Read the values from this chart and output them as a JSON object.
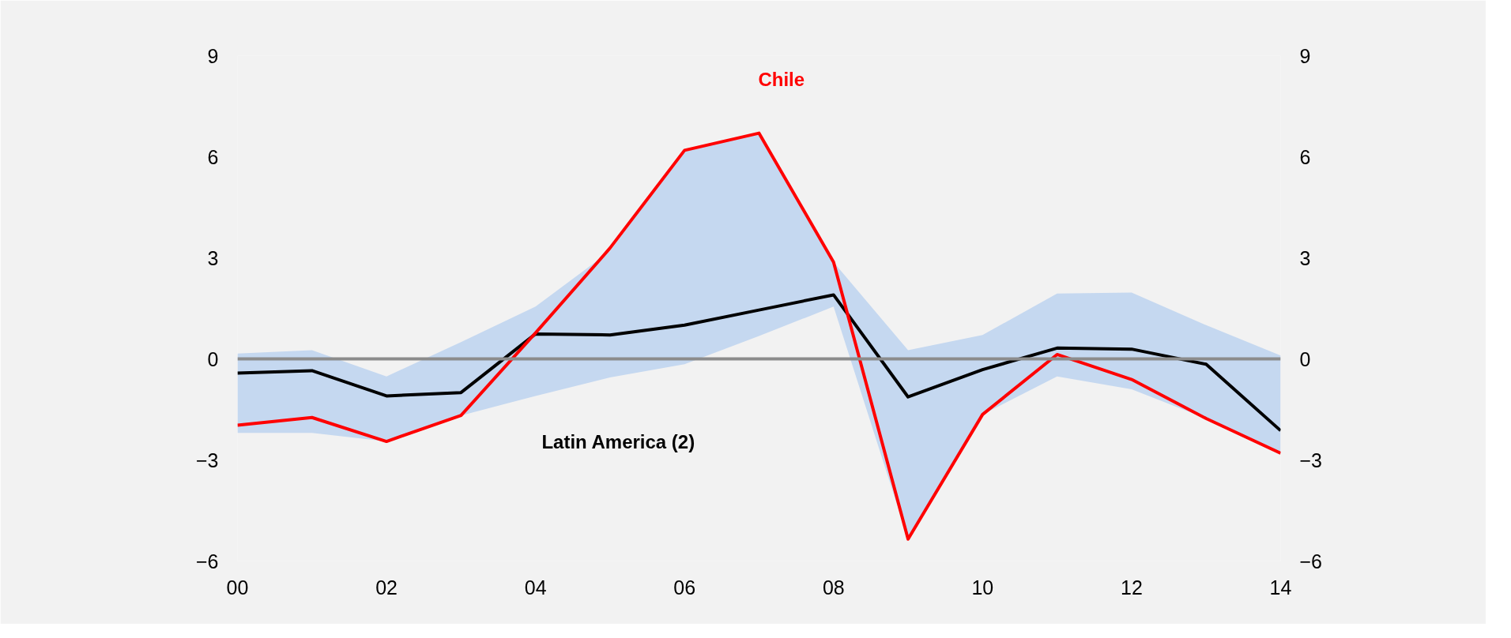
{
  "chart_data": {
    "type": "line",
    "x": [
      2000,
      2001,
      2002,
      2003,
      2004,
      2005,
      2006,
      2007,
      2008,
      2009,
      2010,
      2011,
      2012,
      2013,
      2014
    ],
    "series": [
      {
        "name": "Latin America  (2)",
        "color": "#000000",
        "values": [
          -0.42,
          -0.35,
          -1.1,
          -1.0,
          0.74,
          0.71,
          1.0,
          1.45,
          1.9,
          -1.13,
          -0.32,
          0.32,
          0.29,
          -0.16,
          -2.13
        ],
        "lower": [
          -2.2,
          -2.2,
          -2.45,
          -1.68,
          -1.1,
          -0.55,
          -0.16,
          0.68,
          1.55,
          -5.35,
          -1.65,
          -0.52,
          -0.9,
          -1.77,
          -2.8
        ],
        "upper": [
          0.16,
          0.26,
          -0.52,
          0.5,
          1.55,
          3.2,
          6.19,
          6.7,
          2.87,
          0.26,
          0.71,
          1.94,
          1.97,
          1.0,
          0.1
        ]
      },
      {
        "name": "Chile",
        "color": "#ff0000",
        "values": [
          -1.97,
          -1.74,
          -2.45,
          -1.68,
          0.77,
          3.29,
          6.19,
          6.7,
          2.87,
          -5.35,
          -1.65,
          0.13,
          -0.61,
          -1.77,
          -2.8
        ]
      }
    ],
    "xlim": [
      2000,
      2014
    ],
    "xticks": [
      {
        "value": 2000,
        "label": "00"
      },
      {
        "value": 2002,
        "label": "02"
      },
      {
        "value": 2004,
        "label": "04"
      },
      {
        "value": 2006,
        "label": "06"
      },
      {
        "value": 2008,
        "label": "08"
      },
      {
        "value": 2010,
        "label": "10"
      },
      {
        "value": 2012,
        "label": "12"
      },
      {
        "value": 2014,
        "label": "14"
      }
    ],
    "ylim": [
      -6,
      9
    ],
    "yticks": [
      -6,
      -3,
      0,
      3,
      6,
      9
    ],
    "y2lim": [
      -6,
      9
    ],
    "y2ticks": [
      -6,
      -3,
      0,
      3,
      6,
      9
    ],
    "ref_lines": [
      {
        "axis": "y",
        "value": 0,
        "color": "#8c8c8c"
      }
    ],
    "grid": false,
    "legend": false,
    "marker": "none",
    "line_style": "solid"
  }
}
